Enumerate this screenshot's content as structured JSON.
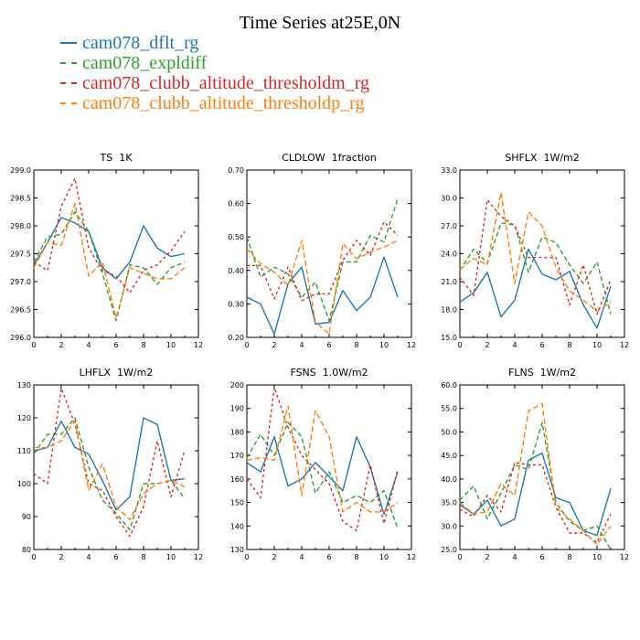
{
  "title": "Time Series at25E,0N",
  "legend": [
    {
      "label": "cam078_dflt_rg",
      "color": "#1f77b4",
      "dashed": false
    },
    {
      "label": "cam078_expldiff",
      "color": "#2ca02c",
      "dashed": true
    },
    {
      "label": "cam078_clubb_altitude_thresholdm_rg",
      "color": "#d62728",
      "dashed": true
    },
    {
      "label": "cam078_clubb_altitude_thresholdp_rg",
      "color": "#ff7f0e",
      "dashed": true
    }
  ],
  "chart_data": [
    {
      "type": "line",
      "title": "TS 1K",
      "xlim": [
        0,
        12
      ],
      "xticks": [
        0,
        2,
        4,
        6,
        8,
        10,
        12
      ],
      "ylim": [
        296.0,
        299.0
      ],
      "yticks": [
        296.0,
        296.5,
        297.0,
        297.5,
        298.0,
        298.5,
        299.0
      ],
      "ydecimals": 1,
      "x": [
        0,
        1,
        2,
        3,
        4,
        5,
        6,
        7,
        8,
        9,
        10,
        11
      ],
      "series": [
        {
          "name": "cam078_dflt_rg",
          "values": [
            297.3,
            297.7,
            298.15,
            298.05,
            297.9,
            297.25,
            297.05,
            297.35,
            298.0,
            297.6,
            297.45,
            297.5
          ]
        },
        {
          "name": "cam078_expldiff",
          "values": [
            297.35,
            297.8,
            297.85,
            298.25,
            297.9,
            297.15,
            296.3,
            297.3,
            297.25,
            296.95,
            297.25,
            297.35
          ]
        },
        {
          "name": "cam078_clubb_altitude_thresholdm_rg",
          "values": [
            297.35,
            297.2,
            298.35,
            298.85,
            297.6,
            297.2,
            297.1,
            296.8,
            297.2,
            297.3,
            297.55,
            297.9
          ]
        },
        {
          "name": "cam078_clubb_altitude_thresholdp_rg",
          "values": [
            297.25,
            297.7,
            297.65,
            298.4,
            297.1,
            297.35,
            296.35,
            297.25,
            297.15,
            297.05,
            297.05,
            297.25
          ]
        }
      ]
    },
    {
      "type": "line",
      "title": "CLDLOW 1fraction",
      "xlim": [
        0,
        12
      ],
      "xticks": [
        0,
        2,
        4,
        6,
        8,
        10,
        12
      ],
      "ylim": [
        0.2,
        0.7
      ],
      "yticks": [
        0.2,
        0.3,
        0.4,
        0.5,
        0.6,
        0.7
      ],
      "ydecimals": 2,
      "x": [
        0,
        1,
        2,
        3,
        4,
        5,
        6,
        7,
        8,
        9,
        10,
        11
      ],
      "series": [
        {
          "name": "cam078_dflt_rg",
          "values": [
            0.32,
            0.3,
            0.21,
            0.36,
            0.41,
            0.24,
            0.245,
            0.34,
            0.28,
            0.32,
            0.44,
            0.32
          ]
        },
        {
          "name": "cam078_expldiff",
          "values": [
            0.5,
            0.38,
            0.41,
            0.39,
            0.32,
            0.365,
            0.25,
            0.425,
            0.425,
            0.505,
            0.485,
            0.615
          ]
        },
        {
          "name": "cam078_clubb_altitude_thresholdm_rg",
          "values": [
            0.415,
            0.415,
            0.315,
            0.41,
            0.31,
            0.33,
            0.33,
            0.43,
            0.49,
            0.445,
            0.545,
            0.505
          ]
        },
        {
          "name": "cam078_clubb_altitude_thresholdp_rg",
          "values": [
            0.465,
            0.42,
            0.395,
            0.355,
            0.49,
            0.245,
            0.21,
            0.48,
            0.435,
            0.455,
            0.47,
            0.49
          ]
        }
      ]
    },
    {
      "type": "line",
      "title": "SHFLX 1W/m2",
      "xlim": [
        0,
        12
      ],
      "xticks": [
        0,
        2,
        4,
        6,
        8,
        10,
        12
      ],
      "ylim": [
        15.0,
        33.0
      ],
      "yticks": [
        15.0,
        18.0,
        21.0,
        24.0,
        27.0,
        30.0,
        33.0
      ],
      "ydecimals": 1,
      "x": [
        0,
        1,
        2,
        3,
        4,
        5,
        6,
        7,
        8,
        9,
        10,
        11
      ],
      "series": [
        {
          "name": "cam078_dflt_rg",
          "values": [
            18.8,
            19.8,
            22.0,
            17.2,
            19.0,
            24.5,
            21.8,
            21.2,
            22.1,
            18.5,
            16.0,
            20.5
          ]
        },
        {
          "name": "cam078_expldiff",
          "values": [
            22.2,
            24.5,
            23.0,
            27.3,
            27.1,
            22.0,
            25.8,
            25.2,
            22.8,
            20.8,
            23.1,
            17.5
          ]
        },
        {
          "name": "cam078_clubb_altitude_thresholdm_rg",
          "values": [
            21.5,
            19.5,
            29.8,
            28.0,
            27.0,
            23.6,
            23.6,
            23.6,
            18.5,
            22.8,
            17.5,
            21.2
          ]
        },
        {
          "name": "cam078_clubb_altitude_thresholdp_rg",
          "values": [
            22.3,
            23.5,
            22.8,
            30.6,
            20.8,
            28.5,
            27.0,
            22.5,
            20.0,
            19.0,
            17.8,
            18.8
          ]
        }
      ]
    },
    {
      "type": "line",
      "title": "LHFLX 1W/m2",
      "xlim": [
        0,
        12
      ],
      "xticks": [
        0,
        2,
        4,
        6,
        8,
        10,
        12
      ],
      "ylim": [
        80,
        130
      ],
      "yticks": [
        80,
        90,
        100,
        110,
        120,
        130
      ],
      "ydecimals": 0,
      "x": [
        0,
        1,
        2,
        3,
        4,
        5,
        6,
        7,
        8,
        9,
        10,
        11
      ],
      "series": [
        {
          "name": "cam078_dflt_rg",
          "values": [
            110,
            111,
            119,
            111,
            109,
            101,
            92,
            96,
            120,
            118,
            101,
            101.5
          ]
        },
        {
          "name": "cam078_expldiff",
          "values": [
            109,
            115,
            115,
            120,
            105,
            95,
            91,
            86,
            100,
            100,
            101,
            95.5
          ]
        },
        {
          "name": "cam078_clubb_altitude_thresholdm_rg",
          "values": [
            103,
            100,
            129,
            118,
            100,
            98,
            90,
            84,
            93,
            113,
            96,
            110
          ]
        },
        {
          "name": "cam078_clubb_altitude_thresholdp_rg",
          "values": [
            111,
            111,
            113,
            119,
            98,
            106,
            93,
            89,
            97,
            100,
            101,
            99
          ]
        }
      ]
    },
    {
      "type": "line",
      "title": "FSNS 1.0W/m2",
      "xlim": [
        0,
        12
      ],
      "xticks": [
        0,
        2,
        4,
        6,
        8,
        10,
        12
      ],
      "ylim": [
        130,
        200
      ],
      "yticks": [
        130,
        140,
        150,
        160,
        170,
        180,
        190,
        200
      ],
      "ydecimals": 0,
      "x": [
        0,
        1,
        2,
        3,
        4,
        5,
        6,
        7,
        8,
        9,
        10,
        11
      ],
      "series": [
        {
          "name": "cam078_dflt_rg",
          "values": [
            167,
            163,
            178,
            157,
            160,
            167,
            161,
            155,
            178,
            165,
            145,
            163
          ]
        },
        {
          "name": "cam078_expldiff",
          "values": [
            169,
            179,
            170,
            184,
            178,
            154,
            163,
            150,
            153,
            150,
            155,
            139
          ]
        },
        {
          "name": "cam078_clubb_altitude_thresholdm_rg",
          "values": [
            160,
            152,
            199,
            182,
            170,
            164,
            158,
            142,
            138,
            166,
            141,
            164
          ]
        },
        {
          "name": "cam078_clubb_altitude_thresholdp_rg",
          "values": [
            168,
            169,
            168,
            191,
            153,
            189,
            178,
            146,
            150,
            146,
            146,
            150
          ]
        }
      ]
    },
    {
      "type": "line",
      "title": "FLNS 1W/m2",
      "xlim": [
        0,
        12
      ],
      "xticks": [
        0,
        2,
        4,
        6,
        8,
        10,
        12
      ],
      "ylim": [
        25.0,
        60.0
      ],
      "yticks": [
        25.0,
        30.0,
        35.0,
        40.0,
        45.0,
        50.0,
        55.0,
        60.0
      ],
      "ydecimals": 1,
      "x": [
        0,
        1,
        2,
        3,
        4,
        5,
        6,
        7,
        8,
        9,
        10,
        11
      ],
      "series": [
        {
          "name": "cam078_dflt_rg",
          "values": [
            34.5,
            32.5,
            35.5,
            30.0,
            31.5,
            44.0,
            45.5,
            36.0,
            35.0,
            29.0,
            28.0,
            38.0
          ]
        },
        {
          "name": "cam078_expldiff",
          "values": [
            35.5,
            38.5,
            31.5,
            37.0,
            43.0,
            42.0,
            52.0,
            35.0,
            31.0,
            29.0,
            30.0,
            25.0
          ]
        },
        {
          "name": "cam078_clubb_altitude_thresholdm_rg",
          "values": [
            33.5,
            32.0,
            36.5,
            33.0,
            43.5,
            43.0,
            43.0,
            34.0,
            28.5,
            28.5,
            26.5,
            32.5
          ]
        },
        {
          "name": "cam078_clubb_altitude_thresholdp_rg",
          "values": [
            35.0,
            32.5,
            33.0,
            39.0,
            36.5,
            54.5,
            56.0,
            34.0,
            31.5,
            29.0,
            26.0,
            30.0
          ]
        }
      ]
    }
  ]
}
